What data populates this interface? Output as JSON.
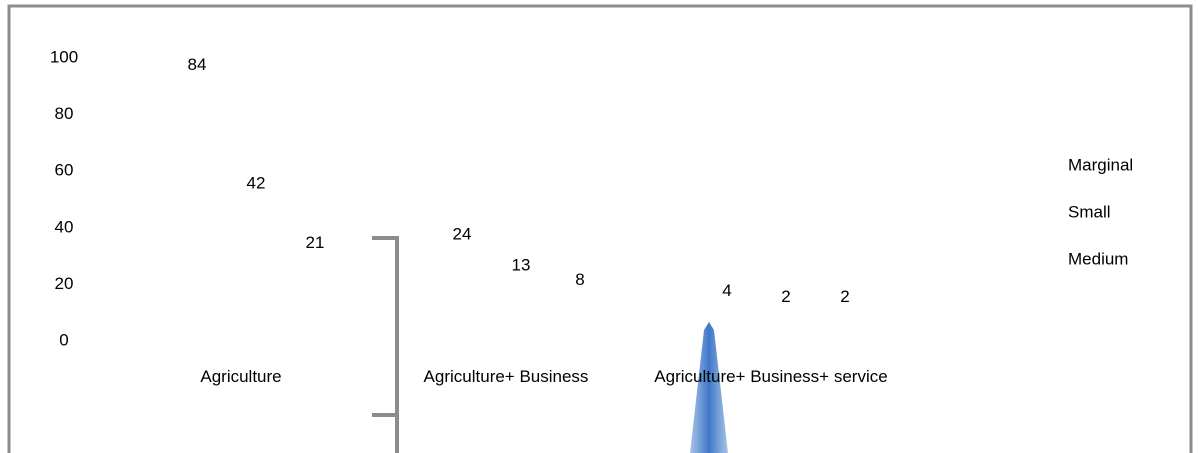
{
  "chart_data": {
    "type": "bar",
    "categories": [
      "Agriculture",
      "Agriculture+ Business",
      "Agriculture+ Business+ service"
    ],
    "series": [
      {
        "name": "Marginal",
        "values": [
          84,
          24,
          4
        ]
      },
      {
        "name": "Small",
        "values": [
          42,
          13,
          2
        ]
      },
      {
        "name": "Medium",
        "values": [
          21,
          8,
          2
        ]
      }
    ],
    "ylim": [
      0,
      100
    ],
    "yticks": [
      0,
      20,
      40,
      60,
      80,
      100
    ]
  }
}
